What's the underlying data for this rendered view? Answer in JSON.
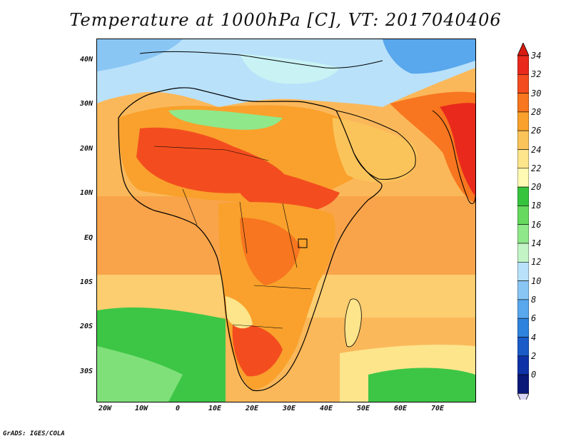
{
  "title": "Temperature at 1000hPa [C], VT: 2017040406",
  "footer": "GrADS: IGES/COLA",
  "map": {
    "lat_labels": [
      "40N",
      "30N",
      "20N",
      "10N",
      "EQ",
      "10S",
      "20S",
      "30S"
    ],
    "lon_labels": [
      "20W",
      "10W",
      "0",
      "10E",
      "20E",
      "30E",
      "40E",
      "50E",
      "60E",
      "70E"
    ],
    "lon_range": [
      -21,
      80
    ],
    "lat_range": [
      -37,
      45
    ],
    "units": "C"
  },
  "colorbar": {
    "labels": [
      "34",
      "32",
      "30",
      "28",
      "26",
      "24",
      "22",
      "20",
      "18",
      "16",
      "14",
      "12",
      "10",
      "8",
      "6",
      "4",
      "2",
      "0"
    ],
    "colors": [
      "#e8291c",
      "#f34d1f",
      "#f7761f",
      "#f9a12c",
      "#fbc45a",
      "#fde58c",
      "#fefab4",
      "#37c43d",
      "#66d95e",
      "#8fe88a",
      "#c2f4c6",
      "#b9e1fa",
      "#8ac6f4",
      "#59a7ec",
      "#2d83dd",
      "#1a5bc8",
      "#0f33a6",
      "#0a1878"
    ]
  },
  "chart_data": {
    "type": "heatmap",
    "title": "Temperature at 1000hPa [C], VT: 2017040406",
    "xlabel": "",
    "ylabel": "",
    "xlim": [
      -21,
      80
    ],
    "ylim": [
      -37,
      45
    ],
    "color_scale": {
      "min": 0,
      "max": 34,
      "step": 2,
      "units": "C"
    }
  }
}
